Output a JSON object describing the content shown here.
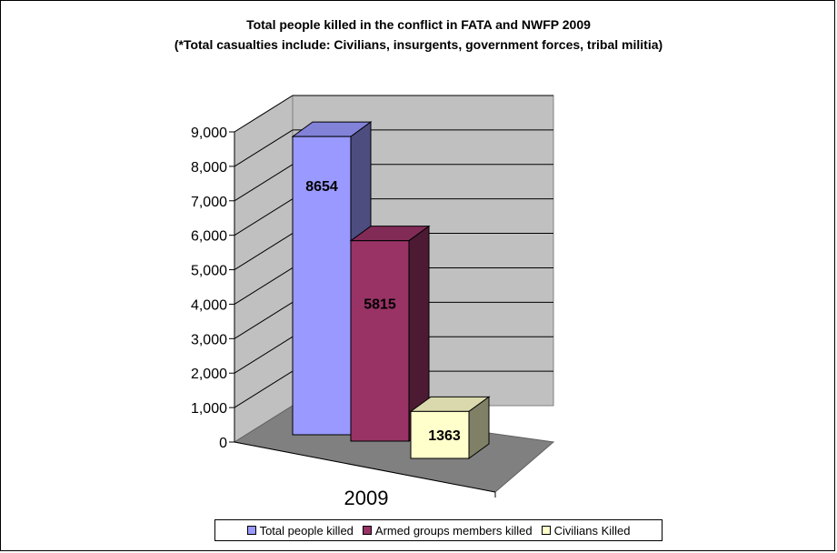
{
  "chart_data": {
    "type": "bar",
    "title": "Total people killed in the conflict in FATA and NWFP 2009",
    "subtitle": "(*Total casualties include: Civilians, insurgents, government forces, tribal militia)",
    "categories": [
      "2009"
    ],
    "series": [
      {
        "name": "Total people killed",
        "values": [
          8654
        ],
        "color": "#9999ff",
        "data_label": "8654"
      },
      {
        "name": "Armed groups members killed",
        "values": [
          5815
        ],
        "color": "#993366",
        "data_label": "5815"
      },
      {
        "name": "Civilians Killed",
        "values": [
          1363
        ],
        "color": "#ffffcc",
        "data_label": "1363"
      }
    ],
    "y_ticks": [
      "0",
      "1,000",
      "2,000",
      "3,000",
      "4,000",
      "5,000",
      "6,000",
      "7,000",
      "8,000",
      "9,000"
    ],
    "ylim": [
      0,
      9000
    ],
    "grid": true,
    "style": "3d-column",
    "legend_position": "bottom"
  }
}
